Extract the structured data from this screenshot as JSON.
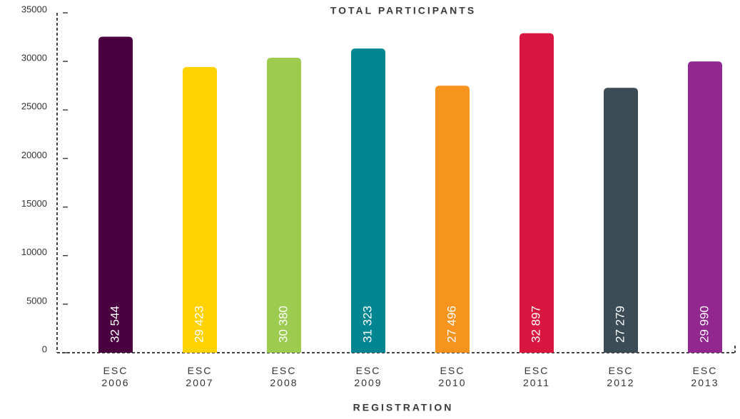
{
  "chart_data": {
    "type": "bar",
    "title": "TOTAL PARTICIPANTS",
    "x_label": "REGISTRATION",
    "categories": [
      "ESC 2006",
      "ESC 2007",
      "ESC 2008",
      "ESC 2009",
      "ESC 2010",
      "ESC 2011",
      "ESC 2012",
      "ESC 2013"
    ],
    "values": [
      32544,
      29423,
      30380,
      31323,
      27496,
      32897,
      27279,
      29990
    ],
    "value_labels": [
      "32 544",
      "29 423",
      "30 380",
      "31 323",
      "27 496",
      "32 897",
      "27 279",
      "29 990"
    ],
    "colors": [
      "#4a0040",
      "#ffd200",
      "#9dcb4f",
      "#008591",
      "#f7941d",
      "#d9163f",
      "#3b4c57",
      "#92278f"
    ],
    "ylim": [
      0,
      35000
    ],
    "yticks": [
      0,
      5000,
      10000,
      15000,
      20000,
      25000,
      30000,
      35000
    ]
  }
}
